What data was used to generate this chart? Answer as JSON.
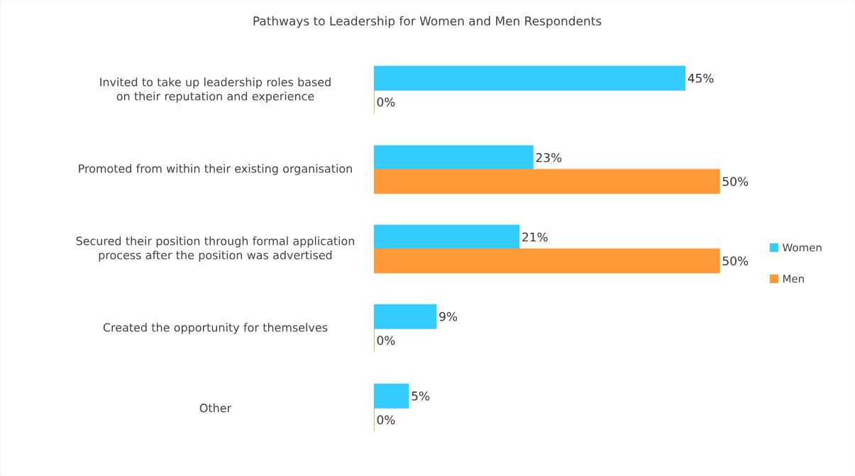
{
  "chart_data": {
    "type": "bar",
    "orientation": "horizontal",
    "title": "Pathways to Leadership for Women and Men Respondents",
    "categories": [
      "Invited to take up leadership roles based on their reputation and experience",
      "Promoted from within their existing organisation",
      "Secured their position through formal application process after the position was advertised",
      "Created the opportunity for themselves",
      "Other"
    ],
    "series": [
      {
        "name": "Women",
        "color": "#33ccff",
        "values": [
          45,
          23,
          21,
          9,
          5
        ],
        "value_labels": [
          "45%",
          "23%",
          "21%",
          "9%",
          "5%"
        ]
      },
      {
        "name": "Men",
        "color": "#ff9933",
        "values": [
          0,
          50,
          50,
          0,
          0
        ],
        "value_labels": [
          "0%",
          "50%",
          "50%",
          "0%",
          "0%"
        ]
      }
    ],
    "legend": "right"
  }
}
